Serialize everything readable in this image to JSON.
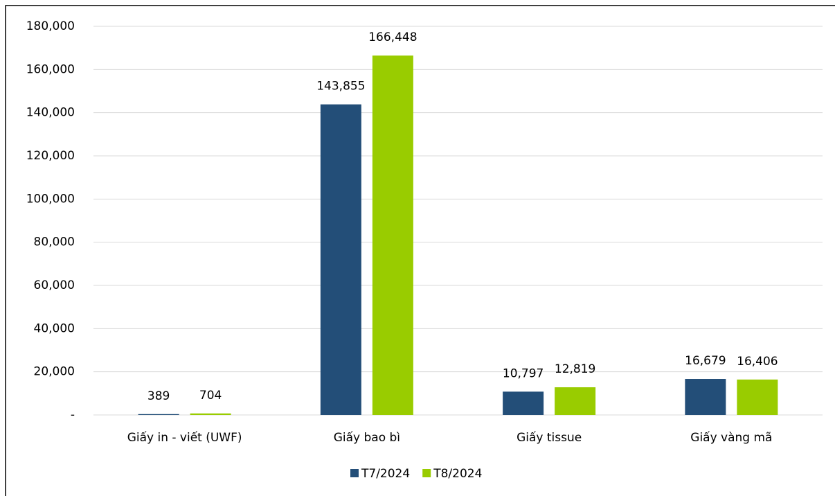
{
  "chart_data": {
    "type": "bar",
    "categories": [
      "Giấy in - viết (UWF)",
      "Giấy bao bì",
      "Giấy tissue",
      "Giấy vàng mã"
    ],
    "series": [
      {
        "name": "T7/2024",
        "color": "#234e78",
        "values": [
          389,
          143855,
          10797,
          16679
        ],
        "value_labels": [
          "389",
          "143,855",
          "10,797",
          "16,679"
        ]
      },
      {
        "name": "T8/2024",
        "color": "#99cc00",
        "values": [
          704,
          166448,
          12819,
          16406
        ],
        "value_labels": [
          "704",
          "166,448",
          "12,819",
          "16,406"
        ]
      }
    ],
    "ylim": [
      0,
      180000
    ],
    "yticks": [
      {
        "value": 0,
        "label": "-"
      },
      {
        "value": 20000,
        "label": "20,000"
      },
      {
        "value": 40000,
        "label": "40,000"
      },
      {
        "value": 60000,
        "label": "60,000"
      },
      {
        "value": 80000,
        "label": "80,000"
      },
      {
        "value": 100000,
        "label": "100,000"
      },
      {
        "value": 120000,
        "label": "120,000"
      },
      {
        "value": 140000,
        "label": "140,000"
      },
      {
        "value": 160000,
        "label": "160,000"
      },
      {
        "value": 180000,
        "label": "180,000"
      }
    ],
    "grid": true,
    "legend": "bottom"
  }
}
